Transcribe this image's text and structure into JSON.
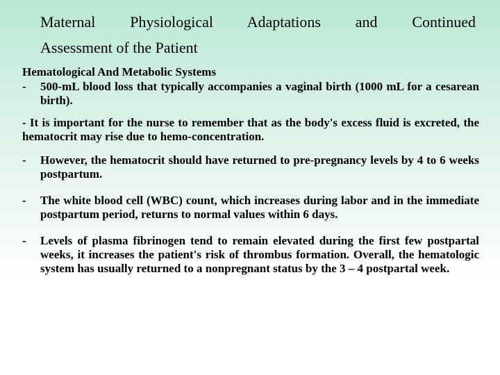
{
  "title_words": {
    "w1": "Maternal",
    "w2": "Physiological",
    "w3": "Adaptations",
    "w4": "and",
    "w5": "Continued",
    "line2": "Assessment of the Patient"
  },
  "subheading": "Hematological And Metabolic Systems",
  "bullets": {
    "dash": "-",
    "b1": "500-mL blood loss that typically accompanies a vaginal birth (1000 mL for a cesarean birth).",
    "p_indent": " - It is important for the nurse to remember that as the body's excess fluid is excreted, the hematocrit may rise due to hemo-concentration.",
    "b2": "However, the hematocrit should have returned to pre-pregnancy levels by 4 to 6 weeks postpartum.",
    "b3": "The white blood cell (WBC) count, which increases during labor and in the immediate postpartum period, returns to normal values within 6 days.",
    "b4": "Levels of plasma fibrinogen tend to remain elevated during the first few postpartal weeks, it increases the patient's risk of thrombus formation. Overall, the hematologic system has usually returned to a nonpregnant status by the 3 – 4 postpartal week."
  },
  "style": {
    "title_fontsize": 22,
    "body_fontsize": 17,
    "text_color": "#000000",
    "bg_gradient_top": "#b8e8d4",
    "bg_gradient_bottom": "#ffffff"
  }
}
